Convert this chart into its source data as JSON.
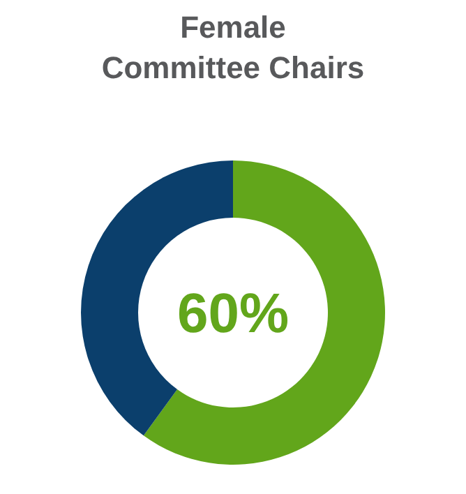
{
  "chart_data": {
    "type": "donut",
    "title": "Female\nCommittee Chairs",
    "categories": [
      null,
      null
    ],
    "values": [
      60,
      40
    ],
    "colors": [
      "#62a61b",
      "#0b3f6c"
    ],
    "value_labels": [
      "60%",
      null
    ]
  }
}
